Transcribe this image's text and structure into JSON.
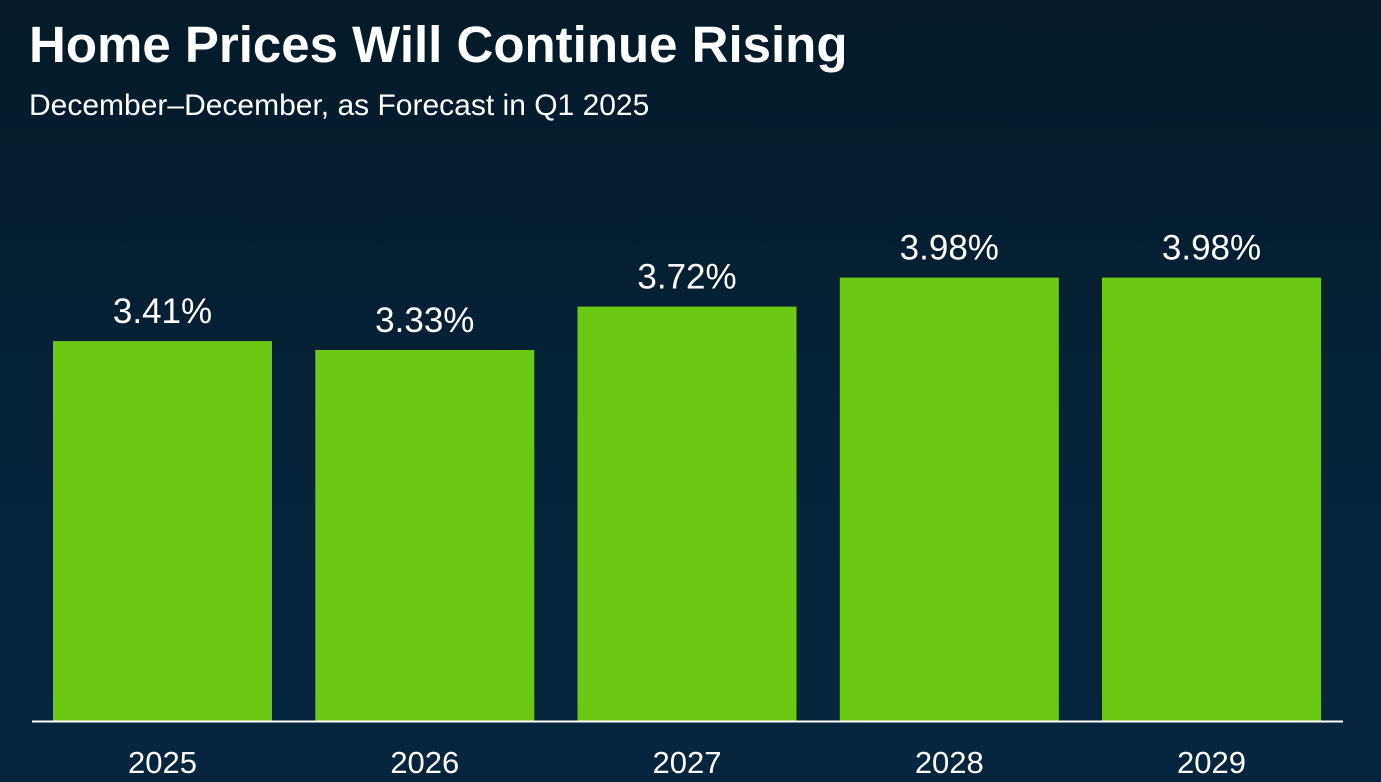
{
  "header": {
    "title": "Home Prices Will Continue Rising",
    "subtitle": "December–December, as Forecast in Q1 2025"
  },
  "chart_data": {
    "type": "bar",
    "title": "Home Prices Will Continue Rising",
    "subtitle": "December–December, as Forecast in Q1 2025",
    "categories": [
      "2025",
      "2026",
      "2027",
      "2028",
      "2029"
    ],
    "values": [
      3.41,
      3.33,
      3.72,
      3.98,
      3.98
    ],
    "value_labels": [
      "3.41%",
      "3.33%",
      "3.72%",
      "3.98%",
      "3.98%"
    ],
    "xlabel": "",
    "ylabel": "",
    "ylim": [
      0,
      4.5
    ],
    "grid": false,
    "legend": "none",
    "colors": {
      "bar": "#6cc913",
      "baseline": "#ffffff",
      "text": "#ffffff",
      "background": "#062338"
    }
  }
}
